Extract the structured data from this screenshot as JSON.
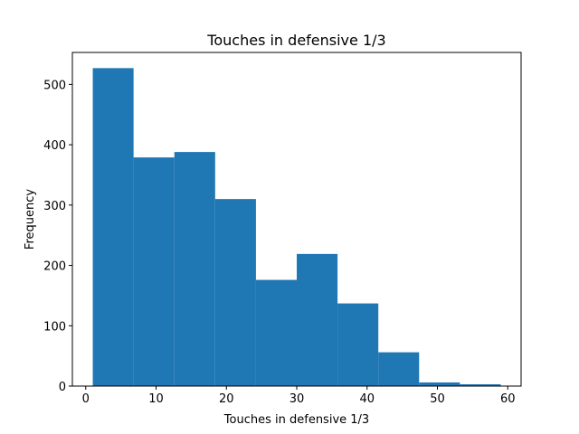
{
  "chart_data": {
    "type": "bar",
    "subtype": "histogram",
    "title": "Touches in defensive 1/3",
    "xlabel": "Touches in defensive 1/3",
    "ylabel": "Frequency",
    "bar_color": "#1f77b4",
    "bin_edges": [
      1.0,
      6.8,
      12.6,
      18.4,
      24.2,
      30.0,
      35.8,
      41.6,
      47.4,
      53.2,
      59.0
    ],
    "values": [
      527,
      379,
      388,
      310,
      176,
      219,
      137,
      56,
      6,
      3
    ],
    "xlim": [
      -1.9,
      61.9
    ],
    "ylim": [
      0,
      553
    ],
    "xticks": [
      0,
      10,
      20,
      30,
      40,
      50,
      60
    ],
    "xtick_labels": [
      "0",
      "10",
      "20",
      "30",
      "40",
      "50",
      "60"
    ],
    "yticks": [
      0,
      100,
      200,
      300,
      400,
      500
    ],
    "ytick_labels": [
      "0",
      "100",
      "200",
      "300",
      "400",
      "500"
    ],
    "grid": false,
    "legend": "none"
  }
}
